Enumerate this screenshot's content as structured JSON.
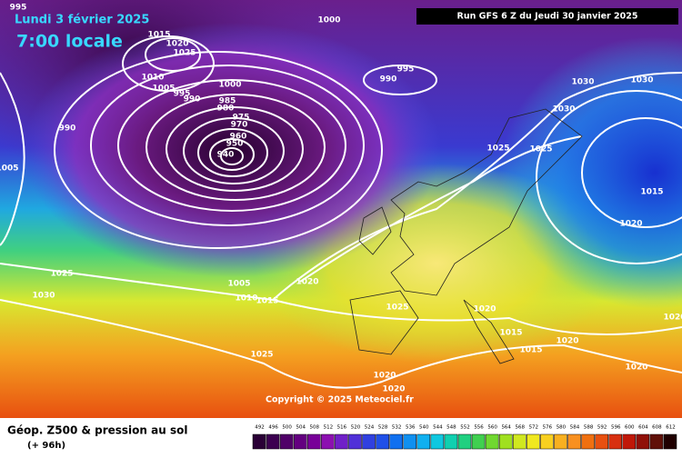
{
  "header": {
    "date": "Lundi 3 février 2025",
    "time": "7:00 locale",
    "run": "Run GFS 6 Z du Jeudi 30 janvier 2025"
  },
  "map": {
    "isobar_labels": [
      "995",
      "1000",
      "1015",
      "1020",
      "1025",
      "1010",
      "1005",
      "995",
      "990",
      "1000",
      "995",
      "990",
      "985",
      "980",
      "975",
      "970",
      "960",
      "950",
      "940",
      "990",
      "1005",
      "1025",
      "1030",
      "1005",
      "1010",
      "1015",
      "1020",
      "1025",
      "1025",
      "1020",
      "1015",
      "1015",
      "1020",
      "1020",
      "1020",
      "1020",
      "1030",
      "1030",
      "1030",
      "1025",
      "1025",
      "1015",
      "1020",
      "1020"
    ],
    "copyright": "Copyright © 2025 Meteociel.fr"
  },
  "footer": {
    "title": "Géop. Z500 & pression au sol",
    "lead": "(+ 96h)",
    "scale": [
      "492",
      "496",
      "500",
      "504",
      "508",
      "512",
      "516",
      "520",
      "524",
      "528",
      "532",
      "536",
      "540",
      "544",
      "548",
      "552",
      "556",
      "560",
      "564",
      "568",
      "572",
      "576",
      "580",
      "584",
      "588",
      "592",
      "596",
      "600",
      "604",
      "608",
      "612"
    ]
  }
}
